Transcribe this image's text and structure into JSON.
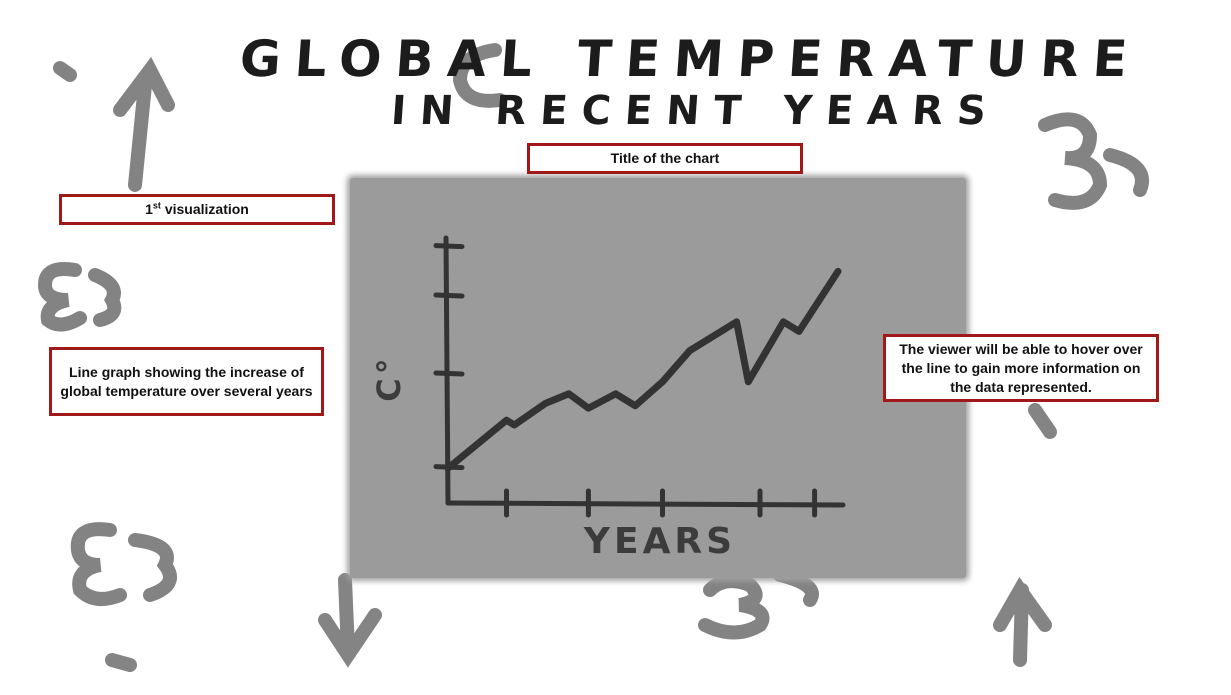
{
  "heading": {
    "line1": "GLOBAL TEMPERATURE",
    "line2": "IN RECENT YEARS"
  },
  "callouts": {
    "title_of_chart": "Title of the chart",
    "visualization_prefix": "1",
    "visualization_sup": "st",
    "visualization_suffix": " visualization",
    "line_graph_note": "Line graph showing the increase of global temperature over several years",
    "hover_note": "The viewer will be able to hover over the line to gain more information on the data represented."
  },
  "chart_data": {
    "type": "line",
    "title": "GLOBAL TEMPERATURE IN RECENT YEARS",
    "xlabel": "YEARS",
    "ylabel": "C°",
    "hand_drawn": true,
    "grid": false,
    "series": [
      {
        "values": [
          [
            0.0,
            0.02
          ],
          [
            0.15,
            0.22
          ],
          [
            0.17,
            0.2
          ],
          [
            0.25,
            0.29
          ],
          [
            0.31,
            0.33
          ],
          [
            0.36,
            0.27
          ],
          [
            0.43,
            0.33
          ],
          [
            0.48,
            0.28
          ],
          [
            0.55,
            0.38
          ],
          [
            0.62,
            0.51
          ],
          [
            0.74,
            0.63
          ],
          [
            0.77,
            0.38
          ],
          [
            0.86,
            0.63
          ],
          [
            0.9,
            0.59
          ],
          [
            1.0,
            0.84
          ]
        ]
      }
    ],
    "x_ticks": 5,
    "y_ticks": 4
  },
  "colors": {
    "callout_border": "#a01818",
    "panel": "#9b9b9b",
    "sketch_line": "#333333",
    "background_doodles": "#6e6e6e"
  }
}
